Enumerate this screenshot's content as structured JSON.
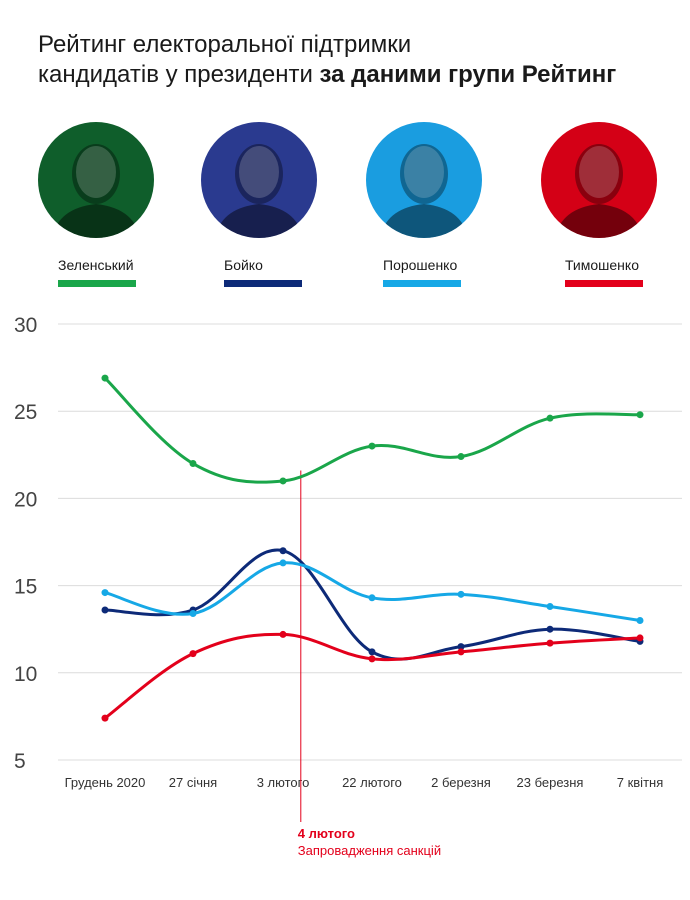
{
  "title": {
    "line1": "Рейтинг електоральної підтримки",
    "line2_plain": "кандидатів у президенти ",
    "line2_bold": "за даними групи Рейтинг"
  },
  "candidates": [
    {
      "name": "Зеленський",
      "color": "#1aa64a",
      "photo_tint": "#0f5e2b",
      "icon": "portrait-zelensky"
    },
    {
      "name": "Бойко",
      "color": "#0d2a78",
      "photo_tint": "#2a3a8f",
      "icon": "portrait-boyko"
    },
    {
      "name": "Порошенко",
      "color": "#16a8e6",
      "photo_tint": "#1a9de0",
      "icon": "portrait-poroshenko"
    },
    {
      "name": "Тимошенко",
      "color": "#e3001b",
      "photo_tint": "#d40016",
      "icon": "portrait-tymoshenko"
    }
  ],
  "annotation": {
    "date": "4 лютого",
    "text": "Запровадження санкцій",
    "color": "#e3001b"
  },
  "chart_data": {
    "type": "line",
    "categories": [
      "Грудень 2020",
      "27 січня",
      "3 лютого",
      "22 лютого",
      "2 березня",
      "23 березня",
      "7 квітня"
    ],
    "series": [
      {
        "name": "Зеленський",
        "color": "#1aa64a",
        "values": [
          26.9,
          22.0,
          21.0,
          23.0,
          22.4,
          24.6,
          24.8
        ]
      },
      {
        "name": "Бойко",
        "color": "#0d2a78",
        "values": [
          13.6,
          13.6,
          17.0,
          11.2,
          11.5,
          12.5,
          11.8
        ]
      },
      {
        "name": "Порошенко",
        "color": "#16a8e6",
        "values": [
          14.6,
          13.4,
          16.3,
          14.3,
          14.5,
          13.8,
          13.0
        ]
      },
      {
        "name": "Тимошенко",
        "color": "#e3001b",
        "values": [
          7.4,
          11.1,
          12.2,
          10.8,
          11.2,
          11.7,
          12.0
        ]
      }
    ],
    "yticks": [
      30,
      25,
      20,
      15,
      10,
      5
    ],
    "ylim": [
      5,
      30
    ],
    "grid": true,
    "annotation_position": 2.2
  }
}
